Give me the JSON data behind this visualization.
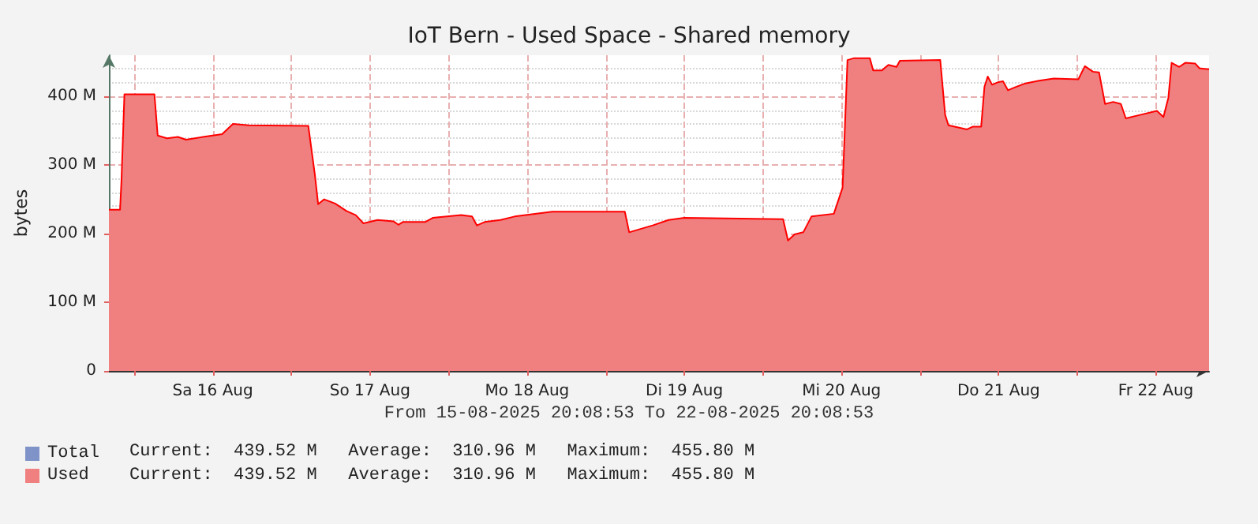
{
  "chart_data": {
    "type": "area",
    "title": "IoT Bern - Used Space - Shared memory",
    "ylabel": "bytes",
    "annotations": [
      "From 15-08-2025 20:08:53 To 22-08-2025 20:08:53",
      "Current:  439.52 M   Average:  310.96 M   Maximum:  455.80 M",
      "Current:  439.52 M   Average:  310.96 M   Maximum:  455.80 M"
    ],
    "x": [
      "2025-08-15T20:08",
      "2025-08-15T21:50",
      "2025-08-15T22:03",
      "2025-08-15T22:30",
      "2025-08-16T03:05",
      "2025-08-16T03:35",
      "2025-08-16T05:00",
      "2025-08-16T06:40",
      "2025-08-16T07:55",
      "2025-08-16T10:30",
      "2025-08-16T13:25",
      "2025-08-16T15:05",
      "2025-08-16T17:30",
      "2025-08-17T02:35",
      "2025-08-17T03:35",
      "2025-08-17T04:05",
      "2025-08-17T05:00",
      "2025-08-17T06:40",
      "2025-08-17T08:25",
      "2025-08-17T09:50",
      "2025-08-17T11:00",
      "2025-08-17T13:10",
      "2025-08-17T15:35",
      "2025-08-17T16:20",
      "2025-08-17T17:00",
      "2025-08-17T20:25",
      "2025-08-17T21:35",
      "2025-08-18T01:55",
      "2025-08-18T03:35",
      "2025-08-18T04:20",
      "2025-08-18T05:30",
      "2025-08-18T07:55",
      "2025-08-18T10:05",
      "2025-08-18T15:50",
      "2025-08-19T02:55",
      "2025-08-19T03:35",
      "2025-08-19T05:00",
      "2025-08-19T07:10",
      "2025-08-19T09:35",
      "2025-08-19T12:00",
      "2025-08-20T03:05",
      "2025-08-20T03:50",
      "2025-08-20T04:50",
      "2025-08-20T06:10",
      "2025-08-20T07:25",
      "2025-08-20T10:50",
      "2025-08-20T11:30",
      "2025-08-20T12:10",
      "2025-08-20T12:55",
      "2025-08-20T13:55",
      "2025-08-20T16:20",
      "2025-08-20T16:50",
      "2025-08-20T18:10",
      "2025-08-20T19:10",
      "2025-08-20T20:25",
      "2025-08-20T20:55",
      "2025-08-21T03:05",
      "2025-08-21T03:50",
      "2025-08-21T04:20",
      "2025-08-21T07:10",
      "2025-08-21T08:05",
      "2025-08-21T09:20",
      "2025-08-21T09:50",
      "2025-08-21T10:20",
      "2025-08-21T11:00",
      "2025-08-21T12:00",
      "2025-08-21T12:40",
      "2025-08-21T13:25",
      "2025-08-21T14:25",
      "2025-08-21T16:05",
      "2025-08-21T18:10",
      "2025-08-21T20:25",
      "2025-08-22T00:10",
      "2025-08-22T01:10",
      "2025-08-22T02:25",
      "2025-08-22T03:20",
      "2025-08-22T04:15",
      "2025-08-22T05:30",
      "2025-08-22T06:40",
      "2025-08-22T07:25",
      "2025-08-22T09:35",
      "2025-08-22T12:10",
      "2025-08-22T13:10",
      "2025-08-22T13:55",
      "2025-08-22T14:25",
      "2025-08-22T15:35",
      "2025-08-22T16:30",
      "2025-08-22T18:00",
      "2025-08-22T18:40",
      "2025-08-22T20:08"
    ],
    "series": [
      {
        "name": "Total",
        "color": "#7f93c8",
        "values": [
          null,
          null,
          null,
          null,
          null,
          null,
          null,
          null,
          null,
          null,
          null,
          null,
          null,
          null,
          null,
          null,
          null,
          null,
          null,
          null,
          null,
          null,
          null,
          null,
          null,
          null,
          null,
          null,
          null,
          null,
          null,
          null,
          null,
          null,
          null,
          null,
          null,
          null,
          null,
          null,
          null,
          null,
          null,
          null,
          null,
          null,
          null,
          null,
          null,
          null,
          null,
          null,
          null,
          null,
          null,
          null,
          null,
          null,
          null,
          null,
          null,
          null,
          null,
          null,
          null,
          null,
          null,
          null,
          null,
          null,
          null,
          null,
          null,
          null,
          null,
          null,
          null,
          null,
          null,
          null,
          null,
          null,
          null,
          null,
          null,
          null,
          null,
          null,
          null,
          null
        ]
      },
      {
        "name": "Used",
        "color": "#f08080",
        "values": [
          235000000,
          235000000,
          277000000,
          403000000,
          403000000,
          343000000,
          339000000,
          341000000,
          337000000,
          341000000,
          345000000,
          360000000,
          358000000,
          357000000,
          286000000,
          243000000,
          250000000,
          244000000,
          233000000,
          227000000,
          215000000,
          220000000,
          218000000,
          213000000,
          217000000,
          217000000,
          223000000,
          227000000,
          225000000,
          212000000,
          217000000,
          220000000,
          225000000,
          232000000,
          232000000,
          202000000,
          206000000,
          212000000,
          220000000,
          223000000,
          221000000,
          190000000,
          199000000,
          202000000,
          225000000,
          229000000,
          248000000,
          267000000,
          453000000,
          455800000,
          455800000,
          438000000,
          438000000,
          446000000,
          443000000,
          452000000,
          453000000,
          373000000,
          358000000,
          352000000,
          356000000,
          356000000,
          414000000,
          429000000,
          417000000,
          421000000,
          422000000,
          409000000,
          413000000,
          419000000,
          423000000,
          426000000,
          425000000,
          444000000,
          436000000,
          435000000,
          389000000,
          392000000,
          389000000,
          368000000,
          373000000,
          379000000,
          370000000,
          398000000,
          449000000,
          443000000,
          449000000,
          448000000,
          441000000,
          439520000
        ]
      }
    ],
    "xlim": [
      "2025-08-15T20:08",
      "2025-08-22T20:08"
    ],
    "xticks": [
      {
        "value": "2025-08-16T00:00",
        "label": null
      },
      {
        "value": "2025-08-16T12:00",
        "label": "Sa 16 Aug"
      },
      {
        "value": "2025-08-17T00:00",
        "label": null
      },
      {
        "value": "2025-08-17T12:00",
        "label": "So 17 Aug"
      },
      {
        "value": "2025-08-18T00:00",
        "label": null
      },
      {
        "value": "2025-08-18T12:00",
        "label": "Mo 18 Aug"
      },
      {
        "value": "2025-08-19T00:00",
        "label": null
      },
      {
        "value": "2025-08-19T12:00",
        "label": "Di 19 Aug"
      },
      {
        "value": "2025-08-20T00:00",
        "label": null
      },
      {
        "value": "2025-08-20T12:00",
        "label": "Mi 20 Aug"
      },
      {
        "value": "2025-08-21T00:00",
        "label": null
      },
      {
        "value": "2025-08-21T12:00",
        "label": "Do 21 Aug"
      },
      {
        "value": "2025-08-22T00:00",
        "label": null
      },
      {
        "value": "2025-08-22T12:00",
        "label": "Fr 22 Aug"
      }
    ],
    "ylim": [
      0,
      460000000
    ],
    "yticks": [
      0,
      {
        "value": 100000000,
        "label": "100 M"
      },
      {
        "value": 200000000,
        "label": "200 M"
      },
      {
        "value": 300000000,
        "label": "300 M"
      },
      {
        "value": 400000000,
        "label": "400 M"
      }
    ],
    "grid": true,
    "legend": "bottom left",
    "marker": "none",
    "line_style": "solid"
  }
}
